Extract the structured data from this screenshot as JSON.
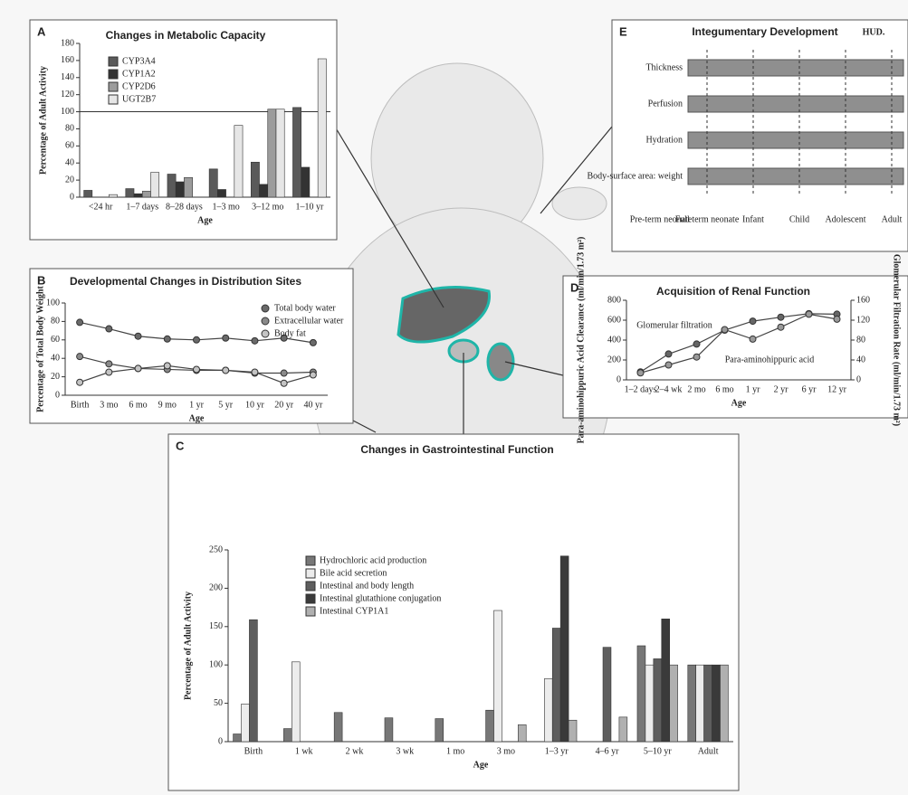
{
  "chart_data": [
    {
      "label": "A",
      "type": "bar",
      "title": "Changes in Metabolic Capacity",
      "categories": [
        "<24 hr",
        "1–7 days",
        "8–28 days",
        "1–3 mo",
        "3–12 mo",
        "1–10 yr"
      ],
      "series": [
        {
          "name": "CYP3A4",
          "color": "#5a5a5a",
          "values": [
            8,
            10,
            27,
            33,
            41,
            105
          ]
        },
        {
          "name": "CYP1A2",
          "color": "#333333",
          "values": [
            null,
            4,
            18,
            9,
            15,
            35
          ]
        },
        {
          "name": "CYP2D6",
          "color": "#9c9c9c",
          "values": [
            null,
            7,
            23,
            null,
            103,
            null
          ]
        },
        {
          "name": "UGT2B7",
          "color": "#e6e6e6",
          "values": [
            3,
            29,
            null,
            84,
            103,
            162
          ]
        }
      ],
      "ylim": [
        0,
        180
      ],
      "yticks": [
        0,
        20,
        40,
        60,
        80,
        100,
        120,
        140,
        160,
        180
      ],
      "reference_line": 100,
      "x_label": "Age",
      "y_label": "Percentage of Adult Activity"
    },
    {
      "label": "B",
      "type": "line",
      "title": "Developmental Changes in Distribution Sites",
      "categories": [
        "Birth",
        "3 mo",
        "6 mo",
        "9 mo",
        "1 yr",
        "5 yr",
        "10 yr",
        "20 yr",
        "40 yr"
      ],
      "series": [
        {
          "name": "Total body water",
          "color": "#6a6a6a",
          "values": [
            79,
            72,
            64,
            61,
            60,
            62,
            59,
            62,
            57
          ]
        },
        {
          "name": "Extracellular water",
          "color": "#8a8a8a",
          "values": [
            42,
            34,
            29,
            28,
            27,
            27,
            24,
            24,
            25
          ]
        },
        {
          "name": "Body fat",
          "color": "#c4c4c4",
          "values": [
            14,
            25,
            29,
            32,
            28,
            27,
            25,
            13,
            22
          ]
        }
      ],
      "ylim": [
        0,
        100
      ],
      "yticks": [
        0,
        20,
        40,
        60,
        80,
        100
      ],
      "x_label": "Age",
      "y_label": "Percentage of Total Body Weight"
    },
    {
      "label": "C",
      "type": "bar",
      "title": "Changes in Gastrointestinal Function",
      "categories": [
        "Birth",
        "1 wk",
        "2 wk",
        "3 wk",
        "1 mo",
        "3 mo",
        "1–3 yr",
        "4–6 yr",
        "5–10 yr",
        "Adult"
      ],
      "series": [
        {
          "name": "Hydrochloric acid production",
          "color": "#777777",
          "values": [
            10,
            17,
            38,
            31,
            30,
            41,
            null,
            null,
            125,
            100
          ]
        },
        {
          "name": "Bile acid secretion",
          "color": "#ececec",
          "values": [
            49,
            104,
            null,
            null,
            null,
            171,
            82,
            null,
            100,
            100
          ]
        },
        {
          "name": "Intestinal and body length",
          "color": "#5e5e5e",
          "values": [
            159,
            null,
            null,
            null,
            null,
            null,
            148,
            123,
            108,
            100
          ]
        },
        {
          "name": "Intestinal glutathione conjugation",
          "color": "#3a3a3a",
          "values": [
            null,
            null,
            null,
            null,
            null,
            null,
            242,
            null,
            160,
            100
          ]
        },
        {
          "name": "Intestinal CYP1A1",
          "color": "#b0b0b0",
          "values": [
            null,
            null,
            null,
            null,
            null,
            22,
            28,
            32,
            100,
            100
          ]
        }
      ],
      "ylim": [
        0,
        250
      ],
      "yticks": [
        0,
        50,
        100,
        150,
        200,
        250
      ],
      "x_label": "Age",
      "y_label": "Percentage of Adult Activity"
    },
    {
      "label": "D",
      "type": "line",
      "title": "Acquisition of Renal Function",
      "categories": [
        "1–2 days",
        "2–4 wk",
        "2 mo",
        "6 mo",
        "1 yr",
        "2 yr",
        "6 yr",
        "12 yr"
      ],
      "series": [
        {
          "name": "Glomerular filtration",
          "color": "#666666",
          "axis": "y2",
          "values": [
            16,
            52,
            72,
            100,
            118,
            126,
            133,
            132
          ]
        },
        {
          "name": "Para-aminohippuric acid",
          "color": "#9a9a9a",
          "values": [
            70,
            150,
            230,
            505,
            410,
            530,
            660,
            610
          ]
        }
      ],
      "ylim": [
        0,
        800
      ],
      "yticks": [
        0,
        200,
        400,
        600,
        800
      ],
      "y2lim": [
        0,
        160
      ],
      "y2ticks": [
        0,
        40,
        80,
        120,
        160
      ],
      "x_label": "Age",
      "y_label": "Para-aminohippuric Acid Clearance (ml/min/1.73 m²)",
      "y2_label": "Glomerular Filtration Rate (ml/min/1.73 m²)"
    },
    {
      "label": "E",
      "type": "band",
      "title": "Integumentary Development",
      "annotation": "HUD.",
      "rows": [
        "Thickness",
        "Perfusion",
        "Hydration",
        "Body-surface area: weight"
      ],
      "categories": [
        "Pre-term neonate",
        "Full term neonate",
        "Infant",
        "Child",
        "Adolescent",
        "Adult"
      ]
    }
  ]
}
